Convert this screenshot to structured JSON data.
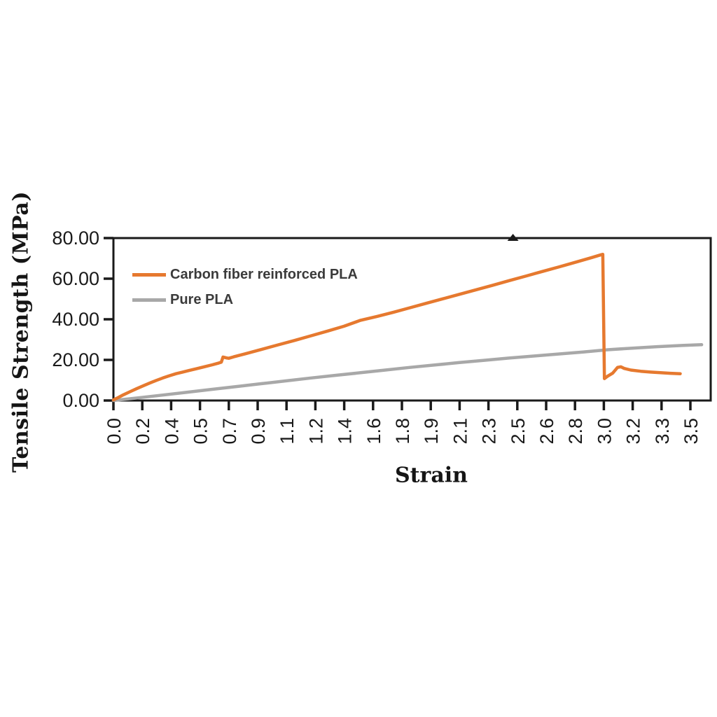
{
  "figure": {
    "background": "#ffffff",
    "axis_color": "#1a1a1a",
    "tick_label_color": "#1a1a1a"
  },
  "chart_data": {
    "type": "line",
    "title": "",
    "xlabel": "Strain",
    "ylabel": "Tensile Strength (MPa)",
    "xlim": [
      0,
      3.625
    ],
    "ylim": [
      0,
      80
    ],
    "grid": false,
    "legend_position": "top-left-inside",
    "x_ticks": [
      {
        "pos": 0.0,
        "label": "0.0"
      },
      {
        "pos": 0.175,
        "label": "0.2"
      },
      {
        "pos": 0.35,
        "label": "0.4"
      },
      {
        "pos": 0.525,
        "label": "0.5"
      },
      {
        "pos": 0.7,
        "label": "0.7"
      },
      {
        "pos": 0.875,
        "label": "0.9"
      },
      {
        "pos": 1.05,
        "label": "1.1"
      },
      {
        "pos": 1.225,
        "label": "1.2"
      },
      {
        "pos": 1.4,
        "label": "1.4"
      },
      {
        "pos": 1.575,
        "label": "1.6"
      },
      {
        "pos": 1.75,
        "label": "1.8"
      },
      {
        "pos": 1.925,
        "label": "1.9"
      },
      {
        "pos": 2.1,
        "label": "2.1"
      },
      {
        "pos": 2.275,
        "label": "2.3"
      },
      {
        "pos": 2.45,
        "label": "2.5"
      },
      {
        "pos": 2.625,
        "label": "2.6"
      },
      {
        "pos": 2.8,
        "label": "2.8"
      },
      {
        "pos": 2.975,
        "label": "3.0"
      },
      {
        "pos": 3.15,
        "label": "3.2"
      },
      {
        "pos": 3.325,
        "label": "3.3"
      },
      {
        "pos": 3.5,
        "label": "3.5"
      }
    ],
    "y_ticks": [
      {
        "pos": 0,
        "label": "0.00"
      },
      {
        "pos": 20,
        "label": "20.00"
      },
      {
        "pos": 40,
        "label": "40.00"
      },
      {
        "pos": 60,
        "label": "60.00"
      },
      {
        "pos": 80,
        "label": "80.00"
      }
    ],
    "series": [
      {
        "name": "Carbon fiber reinforced PLA",
        "color": "#E6792F",
        "points": [
          [
            0.0,
            0.3
          ],
          [
            0.03,
            1.5
          ],
          [
            0.06,
            2.8
          ],
          [
            0.1,
            4.3
          ],
          [
            0.14,
            5.8
          ],
          [
            0.18,
            7.2
          ],
          [
            0.22,
            8.6
          ],
          [
            0.26,
            9.9
          ],
          [
            0.3,
            11.1
          ],
          [
            0.34,
            12.2
          ],
          [
            0.38,
            13.2
          ],
          [
            0.42,
            14.0
          ],
          [
            0.46,
            14.8
          ],
          [
            0.5,
            15.6
          ],
          [
            0.55,
            16.6
          ],
          [
            0.6,
            17.6
          ],
          [
            0.64,
            18.5
          ],
          [
            0.655,
            18.9
          ],
          [
            0.665,
            21.4
          ],
          [
            0.685,
            21.0
          ],
          [
            0.7,
            20.8
          ],
          [
            0.73,
            21.5
          ],
          [
            0.8,
            23.0
          ],
          [
            0.9,
            25.2
          ],
          [
            1.0,
            27.4
          ],
          [
            1.1,
            29.6
          ],
          [
            1.2,
            31.9
          ],
          [
            1.3,
            34.2
          ],
          [
            1.4,
            36.6
          ],
          [
            1.5,
            39.5
          ],
          [
            1.6,
            41.4
          ],
          [
            1.7,
            43.5
          ],
          [
            1.8,
            45.7
          ],
          [
            1.9,
            47.9
          ],
          [
            2.0,
            50.1
          ],
          [
            2.1,
            52.3
          ],
          [
            2.2,
            54.5
          ],
          [
            2.3,
            56.7
          ],
          [
            2.4,
            59.0
          ],
          [
            2.5,
            61.2
          ],
          [
            2.6,
            63.5
          ],
          [
            2.7,
            65.7
          ],
          [
            2.8,
            68.0
          ],
          [
            2.9,
            70.3
          ],
          [
            2.96,
            71.8
          ],
          [
            2.97,
            72.0
          ],
          [
            2.98,
            10.8
          ],
          [
            3.0,
            12.0
          ],
          [
            3.03,
            13.5
          ],
          [
            3.06,
            16.3
          ],
          [
            3.08,
            16.6
          ],
          [
            3.1,
            15.8
          ],
          [
            3.14,
            15.0
          ],
          [
            3.2,
            14.4
          ],
          [
            3.26,
            14.0
          ],
          [
            3.32,
            13.7
          ],
          [
            3.38,
            13.4
          ],
          [
            3.44,
            13.2
          ]
        ]
      },
      {
        "name": "Pure PLA",
        "color": "#A8A8A8",
        "points": [
          [
            0.0,
            0.0
          ],
          [
            0.15,
            1.3
          ],
          [
            0.3,
            2.7
          ],
          [
            0.45,
            4.1
          ],
          [
            0.6,
            5.5
          ],
          [
            0.75,
            6.9
          ],
          [
            0.9,
            8.3
          ],
          [
            1.05,
            9.7
          ],
          [
            1.2,
            11.1
          ],
          [
            1.35,
            12.4
          ],
          [
            1.5,
            13.7
          ],
          [
            1.65,
            15.0
          ],
          [
            1.8,
            16.3
          ],
          [
            1.95,
            17.5
          ],
          [
            2.1,
            18.7
          ],
          [
            2.25,
            19.8
          ],
          [
            2.4,
            20.9
          ],
          [
            2.55,
            21.9
          ],
          [
            2.7,
            22.9
          ],
          [
            2.85,
            23.9
          ],
          [
            3.0,
            25.0
          ],
          [
            3.15,
            25.8
          ],
          [
            3.3,
            26.5
          ],
          [
            3.45,
            27.1
          ],
          [
            3.57,
            27.5
          ]
        ]
      }
    ],
    "annotations": [
      {
        "shape": "triangle-up-marker",
        "x": 2.425,
        "at": "top-frame"
      }
    ]
  }
}
